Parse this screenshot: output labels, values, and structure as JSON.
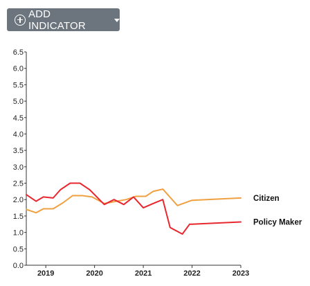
{
  "toolbar": {
    "add_indicator_label": "ADD INDICATOR"
  },
  "icons": {
    "add": "plus-circle-icon",
    "dropdown": "caret-down-icon"
  },
  "chart_data": {
    "type": "line",
    "title": "",
    "xlabel": "",
    "ylabel": "",
    "ylim": [
      0,
      6.5
    ],
    "yticks": [
      "0.0",
      "0.5",
      "1.0",
      "1.5",
      "2.0",
      "2.5",
      "3.0",
      "3.5",
      "4.0",
      "4.5",
      "5.0",
      "5.5",
      "6.0",
      "6.5"
    ],
    "xlim": [
      2018.6,
      2023.0
    ],
    "xticks": [
      "2019",
      "2020",
      "2021",
      "2022",
      "2023"
    ],
    "grid": false,
    "legend": "inline-right",
    "series": [
      {
        "name": "Citizen",
        "color": "#f0a040",
        "x": [
          2018.6,
          2018.8,
          2018.95,
          2019.15,
          2019.35,
          2019.55,
          2019.75,
          2019.95,
          2020.2,
          2020.45,
          2020.65,
          2020.85,
          2021.05,
          2021.2,
          2021.4,
          2021.7,
          2022.0,
          2023.0
        ],
        "values": [
          1.7,
          1.6,
          1.72,
          1.72,
          1.9,
          2.12,
          2.12,
          2.08,
          1.88,
          1.95,
          2.0,
          2.1,
          2.1,
          2.25,
          2.32,
          1.82,
          1.98,
          2.05
        ]
      },
      {
        "name": "Policy Maker",
        "color": "#e8262e",
        "x": [
          2018.6,
          2018.8,
          2018.95,
          2019.15,
          2019.3,
          2019.5,
          2019.7,
          2019.9,
          2020.2,
          2020.4,
          2020.6,
          2020.8,
          2021.0,
          2021.2,
          2021.4,
          2021.55,
          2021.8,
          2021.95,
          2022.0,
          2023.0
        ],
        "values": [
          2.15,
          1.95,
          2.08,
          2.05,
          2.3,
          2.5,
          2.5,
          2.3,
          1.85,
          2.0,
          1.85,
          2.08,
          1.75,
          1.88,
          2.0,
          1.15,
          0.95,
          1.25,
          1.25,
          1.32
        ]
      }
    ]
  }
}
